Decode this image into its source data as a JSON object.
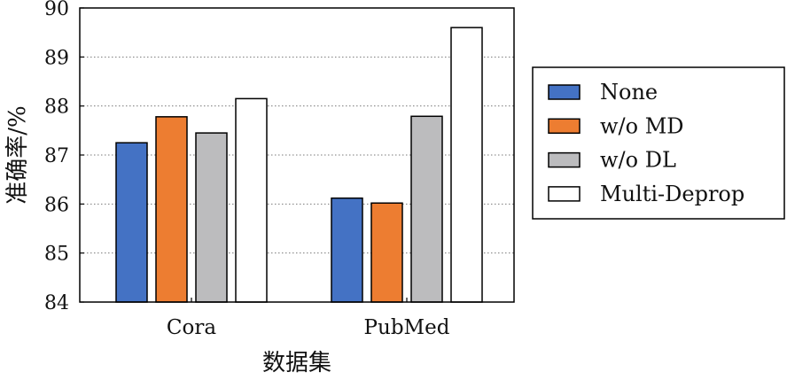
{
  "chart_data": {
    "type": "bar",
    "categories": [
      "Cora",
      "PubMed"
    ],
    "series": [
      {
        "name": "None",
        "values": [
          87.25,
          86.12
        ],
        "color": "#4472c4"
      },
      {
        "name": "w/o MD",
        "values": [
          87.78,
          86.02
        ],
        "color": "#ed7d31"
      },
      {
        "name": "w/o DL",
        "values": [
          87.45,
          87.79
        ],
        "color": "#bcbcbe"
      },
      {
        "name": "Multi-Deprop",
        "values": [
          88.15,
          89.6
        ],
        "color": "#ffffff"
      }
    ],
    "xlabel": "数据集",
    "ylabel": "准确率/%",
    "ylim": [
      84,
      90
    ],
    "yticks": [
      84,
      85,
      86,
      87,
      88,
      89,
      90
    ],
    "grid": "horizontal dotted",
    "legend_position": "right"
  }
}
